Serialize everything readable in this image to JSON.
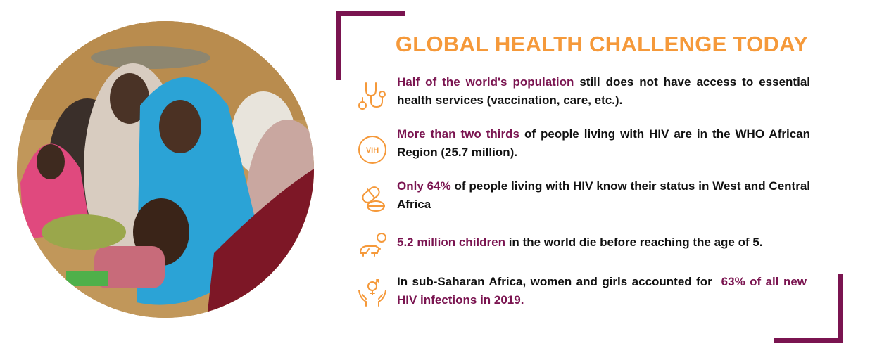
{
  "title": "GLOBAL HEALTH CHALLENGE TODAY",
  "colors": {
    "accent": "#f5993a",
    "brand": "#7a1450",
    "text": "#111111"
  },
  "items": [
    {
      "icon": "stethoscope-icon",
      "highlight": "Half of the world's population",
      "text": " still does not have access to essential health services (vaccination, care, etc.)."
    },
    {
      "icon": "vih-icon",
      "icon_label": "VIH",
      "highlight": "More than two thirds",
      "text": " of people living with HIV are in the WHO African Region (25.7 million)."
    },
    {
      "icon": "pills-icon",
      "highlight": "Only 64%",
      "text": " of people living with HIV know their status in West and Central Africa"
    },
    {
      "icon": "baby-icon",
      "highlight": "5.2 million children",
      "text": " in the world die before reaching the age of 5."
    },
    {
      "icon": "hands-gender-icon",
      "text_before": "In sub-Saharan Africa, women and girls accounted for  ",
      "highlight": "63% of all new HIV infections in 2019."
    }
  ]
}
